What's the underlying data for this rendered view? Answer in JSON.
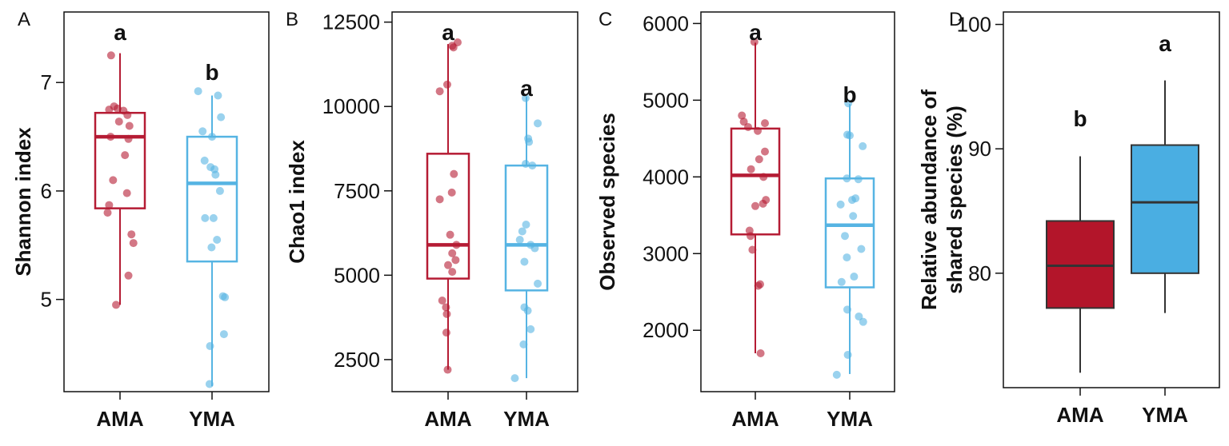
{
  "colors": {
    "ama": "#b51c34",
    "yma": "#56b4e3",
    "ama_fill": "#b3152a",
    "yma_fill": "#4aaee2",
    "median_dark": "#333333"
  },
  "chart_data": [
    {
      "panel": "A",
      "type": "box",
      "ylabel": "Shannon index",
      "ylim": [
        4.15,
        7.65
      ],
      "yticks": [
        5,
        6,
        7
      ],
      "style": "outline-jitter",
      "categories": [
        "AMA",
        "YMA"
      ],
      "boxes": [
        {
          "name": "AMA",
          "min": 4.95,
          "q1": 5.84,
          "median": 6.5,
          "q3": 6.72,
          "max": 7.27,
          "letter": "a",
          "points": [
            [
              -0.18,
              7.25
            ],
            [
              -0.12,
              6.78
            ],
            [
              -0.22,
              6.75
            ],
            [
              -0.05,
              6.76
            ],
            [
              0.07,
              6.74
            ],
            [
              0.15,
              6.7
            ],
            [
              -0.02,
              6.64
            ],
            [
              0.19,
              6.6
            ],
            [
              -0.19,
              6.5
            ],
            [
              0.17,
              6.48
            ],
            [
              0.1,
              6.33
            ],
            [
              -0.14,
              6.1
            ],
            [
              0.14,
              5.98
            ],
            [
              -0.22,
              5.87
            ],
            [
              -0.25,
              5.8
            ],
            [
              0.23,
              5.6
            ],
            [
              0.27,
              5.52
            ],
            [
              0.17,
              5.22
            ],
            [
              -0.08,
              4.95
            ]
          ]
        },
        {
          "name": "YMA",
          "min": 4.2,
          "q1": 5.35,
          "median": 6.07,
          "q3": 6.5,
          "max": 6.88,
          "letter": "b",
          "points": [
            [
              -0.28,
              6.92
            ],
            [
              0.12,
              6.88
            ],
            [
              0.18,
              6.68
            ],
            [
              -0.19,
              6.55
            ],
            [
              0.0,
              6.5
            ],
            [
              -0.15,
              6.28
            ],
            [
              -0.03,
              6.22
            ],
            [
              0.05,
              6.2
            ],
            [
              0.07,
              6.15
            ],
            [
              0.16,
              6.0
            ],
            [
              -0.14,
              5.75
            ],
            [
              0.03,
              5.75
            ],
            [
              0.1,
              5.55
            ],
            [
              -0.01,
              5.48
            ],
            [
              0.22,
              5.03
            ],
            [
              0.26,
              5.02
            ],
            [
              0.24,
              4.68
            ],
            [
              -0.04,
              4.57
            ],
            [
              -0.05,
              4.22
            ]
          ]
        }
      ]
    },
    {
      "panel": "B",
      "type": "box",
      "ylabel": "Chao1 index",
      "ylim": [
        1550,
        12800
      ],
      "yticks": [
        2500,
        5000,
        7500,
        10000,
        12500
      ],
      "style": "outline-jitter",
      "categories": [
        "AMA",
        "YMA"
      ],
      "boxes": [
        {
          "name": "AMA",
          "min": 2200,
          "q1": 4900,
          "median": 5900,
          "q3": 8600,
          "max": 11850,
          "letter": "a",
          "points": [
            [
              0.23,
              11900
            ],
            [
              0.1,
              11800
            ],
            [
              0.13,
              11750
            ],
            [
              -0.02,
              10650
            ],
            [
              -0.2,
              10450
            ],
            [
              0.14,
              8000
            ],
            [
              0.09,
              7450
            ],
            [
              -0.2,
              7250
            ],
            [
              0.05,
              6200
            ],
            [
              0.2,
              5900
            ],
            [
              0.1,
              5650
            ],
            [
              0.18,
              5450
            ],
            [
              0.0,
              5300
            ],
            [
              0.1,
              5100
            ],
            [
              -0.14,
              4250
            ],
            [
              -0.05,
              4050
            ],
            [
              -0.03,
              3850
            ],
            [
              -0.04,
              3300
            ],
            [
              -0.01,
              2200
            ]
          ]
        },
        {
          "name": "YMA",
          "min": 1950,
          "q1": 4550,
          "median": 5900,
          "q3": 8250,
          "max": 10300,
          "letter": "a",
          "points": [
            [
              -0.02,
              10250
            ],
            [
              0.27,
              9500
            ],
            [
              0.04,
              9050
            ],
            [
              0.06,
              8950
            ],
            [
              -0.02,
              8300
            ],
            [
              0.14,
              8250
            ],
            [
              -0.01,
              6500
            ],
            [
              -0.1,
              6300
            ],
            [
              -0.16,
              6050
            ],
            [
              0.1,
              5900
            ],
            [
              0.2,
              5800
            ],
            [
              -0.05,
              5400
            ],
            [
              0.27,
              4750
            ],
            [
              -0.05,
              4050
            ],
            [
              0.03,
              3950
            ],
            [
              0.1,
              3400
            ],
            [
              -0.07,
              2950
            ],
            [
              -0.28,
              1950
            ]
          ]
        }
      ]
    },
    {
      "panel": "C",
      "type": "box",
      "ylabel": "Observed species",
      "ylim": [
        1200,
        6150
      ],
      "yticks": [
        2000,
        3000,
        4000,
        5000,
        6000
      ],
      "style": "outline-jitter",
      "categories": [
        "AMA",
        "YMA"
      ],
      "boxes": [
        {
          "name": "AMA",
          "min": 1700,
          "q1": 3250,
          "median": 4020,
          "q3": 4630,
          "max": 5750,
          "letter": "a",
          "points": [
            [
              -0.02,
              5760
            ],
            [
              -0.28,
              4800
            ],
            [
              0.2,
              4700
            ],
            [
              -0.24,
              4720
            ],
            [
              -0.15,
              4650
            ],
            [
              0.05,
              4600
            ],
            [
              0.2,
              4330
            ],
            [
              0.08,
              4230
            ],
            [
              -0.09,
              4100
            ],
            [
              0.17,
              4000
            ],
            [
              0.22,
              3700
            ],
            [
              0.16,
              3650
            ],
            [
              0.0,
              3620
            ],
            [
              -0.12,
              3300
            ],
            [
              -0.1,
              3230
            ],
            [
              -0.06,
              3050
            ],
            [
              0.1,
              2600
            ],
            [
              0.06,
              2580
            ],
            [
              0.11,
              1700
            ]
          ]
        },
        {
          "name": "YMA",
          "min": 1430,
          "q1": 2560,
          "median": 3370,
          "q3": 3980,
          "max": 4950,
          "letter": "b",
          "points": [
            [
              -0.03,
              4960
            ],
            [
              -0.05,
              4550
            ],
            [
              0.0,
              4540
            ],
            [
              0.27,
              4400
            ],
            [
              -0.06,
              3980
            ],
            [
              0.18,
              3970
            ],
            [
              0.12,
              3720
            ],
            [
              -0.19,
              3640
            ],
            [
              0.05,
              3700
            ],
            [
              0.07,
              3490
            ],
            [
              -0.1,
              3230
            ],
            [
              0.24,
              3060
            ],
            [
              -0.06,
              2950
            ],
            [
              0.09,
              2700
            ],
            [
              -0.17,
              2630
            ],
            [
              -0.05,
              2270
            ],
            [
              0.19,
              2180
            ],
            [
              0.28,
              2110
            ],
            [
              -0.27,
              1420
            ],
            [
              -0.04,
              1680
            ]
          ]
        }
      ]
    },
    {
      "panel": "D",
      "type": "box",
      "ylabel": "Relative abundance of shared species (%)",
      "ylabel_lines": [
        "Relative abundance of",
        "shared species (%)"
      ],
      "ylim": [
        70.8,
        101
      ],
      "yticks": [
        80,
        90,
        100
      ],
      "style": "filled",
      "categories": [
        "AMA",
        "YMA"
      ],
      "boxes": [
        {
          "name": "AMA",
          "min": 72,
          "q1": 77.2,
          "median": 80.6,
          "q3": 84.2,
          "max": 89.4,
          "letter": "b",
          "points": []
        },
        {
          "name": "YMA",
          "min": 76.8,
          "q1": 80,
          "median": 85.7,
          "q3": 90.3,
          "max": 95.5,
          "letter": "a",
          "points": []
        }
      ]
    }
  ]
}
